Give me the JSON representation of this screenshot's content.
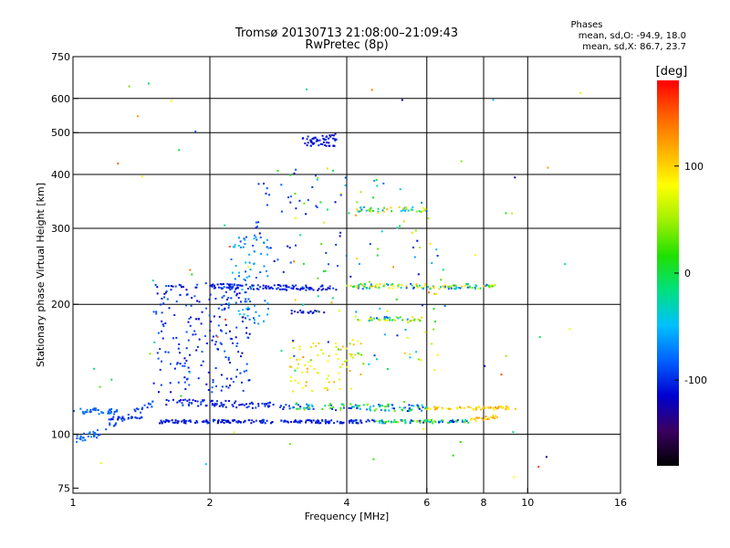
{
  "chart_data": {
    "type": "scatter",
    "title": "Tromsø 20130713 21:08:00–21:09:43",
    "subtitle": "RwPretec (8p)",
    "xlabel": "Frequency [MHz]",
    "ylabel": "Stationary phase Virtual Height [km]",
    "xscale": "log",
    "yscale": "log",
    "xlim": [
      1,
      16
    ],
    "ylim": [
      73,
      750
    ],
    "xticks": [
      1,
      2,
      4,
      6,
      8,
      10,
      16
    ],
    "yticks": [
      75,
      100,
      200,
      300,
      400,
      500,
      600,
      750
    ],
    "x_gridlines": [
      2,
      4,
      6,
      8,
      10
    ],
    "y_gridlines": [
      100,
      200,
      300,
      400,
      500,
      600
    ],
    "grid": true,
    "stats": {
      "title": "Phases",
      "line_o": "mean, sd,O: -94.9, 18.0",
      "line_x": "mean, sd,X: 86.7, 23.7"
    },
    "colorbar": {
      "label": "[deg]",
      "range": [
        -180,
        180
      ],
      "ticks": [
        100,
        0,
        -100
      ],
      "colors": [
        "#000000",
        "#3a0060",
        "#0000d0",
        "#0060ff",
        "#00c0ff",
        "#00e080",
        "#20e000",
        "#a0f000",
        "#ffff00",
        "#ffb000",
        "#ff6000",
        "#ff0000"
      ]
    },
    "traces": [
      {
        "kind": "band",
        "x": [
          1.0,
          1.25
        ],
        "y": [
          113,
          113
        ],
        "jitter": 2,
        "n": 40,
        "phase": [
          -90,
          -70
        ]
      },
      {
        "kind": "band",
        "x": [
          1.0,
          1.17
        ],
        "y": [
          97,
          101
        ],
        "jitter": 2,
        "n": 30,
        "phase": [
          -90,
          -70
        ]
      },
      {
        "kind": "band",
        "x": [
          1.17,
          1.5
        ],
        "y": [
          103,
          118
        ],
        "jitter": 2,
        "n": 30,
        "phase": [
          -100,
          -80
        ]
      },
      {
        "kind": "band",
        "x": [
          1.2,
          1.42
        ],
        "y": [
          109,
          109
        ],
        "jitter": 1,
        "n": 25,
        "phase": [
          -110,
          -90
        ]
      },
      {
        "kind": "band",
        "x": [
          1.55,
          4.6
        ],
        "y": [
          107,
          107
        ],
        "jitter": 1,
        "n": 180,
        "phase": [
          -120,
          -90
        ]
      },
      {
        "kind": "band",
        "x": [
          4.6,
          7.5
        ],
        "y": [
          107,
          107
        ],
        "jitter": 1,
        "n": 90,
        "phase": [
          -110,
          60
        ]
      },
      {
        "kind": "band",
        "x": [
          7.5,
          8.6
        ],
        "y": [
          108,
          110
        ],
        "jitter": 1,
        "n": 25,
        "phase": [
          90,
          130
        ]
      },
      {
        "kind": "band",
        "x": [
          1.6,
          3.0
        ],
        "y": [
          119,
          116
        ],
        "jitter": 2,
        "n": 90,
        "phase": [
          -120,
          -90
        ]
      },
      {
        "kind": "band",
        "x": [
          3.0,
          6.0
        ],
        "y": [
          116,
          115
        ],
        "jitter": 2,
        "n": 110,
        "phase": [
          -120,
          60
        ]
      },
      {
        "kind": "band",
        "x": [
          6.0,
          9.5
        ],
        "y": [
          115,
          115
        ],
        "jitter": 1,
        "n": 60,
        "phase": [
          80,
          130
        ]
      },
      {
        "kind": "cloud",
        "x": [
          1.5,
          2.45
        ],
        "y": [
          125,
          225
        ],
        "n": 220,
        "phase": [
          -120,
          -80
        ]
      },
      {
        "kind": "cloud",
        "x": [
          2.2,
          2.7
        ],
        "y": [
          180,
          290
        ],
        "n": 80,
        "phase": [
          -90,
          -40
        ]
      },
      {
        "kind": "band",
        "x": [
          2.0,
          3.8
        ],
        "y": [
          220,
          218
        ],
        "jitter": 3,
        "n": 110,
        "phase": [
          -120,
          -90
        ]
      },
      {
        "kind": "band",
        "x": [
          4.0,
          8.5
        ],
        "y": [
          220,
          220
        ],
        "jitter": 3,
        "n": 120,
        "phase": [
          -100,
          120
        ]
      },
      {
        "kind": "band",
        "x": [
          4.2,
          5.9
        ],
        "y": [
          185,
          185
        ],
        "jitter": 2,
        "n": 40,
        "phase": [
          -100,
          110
        ]
      },
      {
        "kind": "band",
        "x": [
          3.0,
          3.6
        ],
        "y": [
          192,
          192
        ],
        "jitter": 2,
        "n": 20,
        "phase": [
          -120,
          -100
        ]
      },
      {
        "kind": "band",
        "x": [
          4.2,
          6.0
        ],
        "y": [
          332,
          332
        ],
        "jitter": 4,
        "n": 45,
        "phase": [
          -90,
          120
        ]
      },
      {
        "kind": "band",
        "x": [
          3.2,
          3.8
        ],
        "y": [
          480,
          480
        ],
        "jitter": 15,
        "n": 60,
        "phase": [
          -120,
          -100
        ]
      },
      {
        "kind": "cloud",
        "x": [
          3.0,
          4.3
        ],
        "y": [
          125,
          165
        ],
        "n": 70,
        "phase": [
          60,
          120
        ]
      },
      {
        "kind": "cloud",
        "x": [
          3.0,
          6.5
        ],
        "y": [
          140,
          420
        ],
        "n": 110,
        "phase": [
          -120,
          130
        ]
      },
      {
        "kind": "cloud",
        "x": [
          2.5,
          4.0
        ],
        "y": [
          240,
          420
        ],
        "n": 40,
        "phase": [
          -120,
          -80
        ]
      },
      {
        "kind": "cloud",
        "x": [
          1.1,
          14.0
        ],
        "y": [
          78,
          680
        ],
        "n": 70,
        "phase": [
          -140,
          160
        ]
      }
    ]
  }
}
